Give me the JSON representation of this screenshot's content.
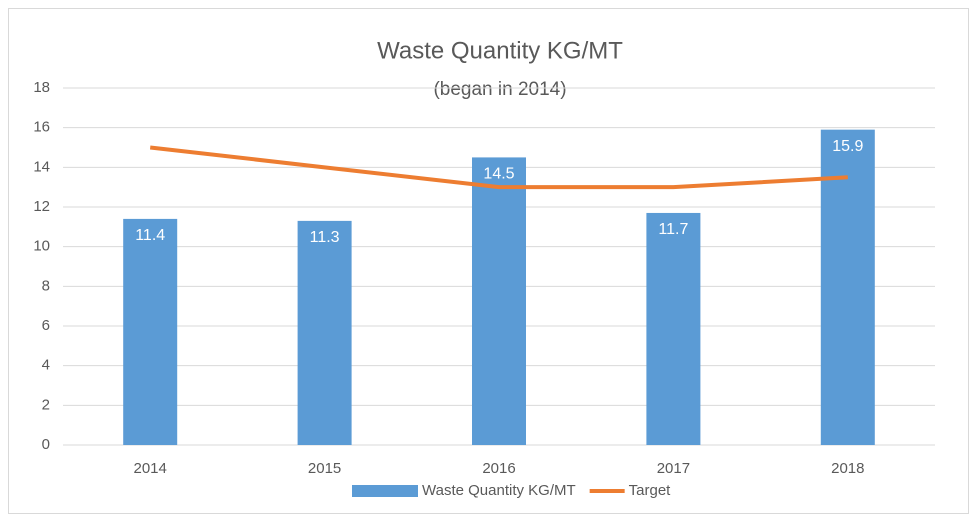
{
  "chart_data": {
    "type": "combo",
    "title": "Waste Quantity KG/MT",
    "subtitle": "(began in 2014)",
    "categories": [
      "2014",
      "2015",
      "2016",
      "2017",
      "2018"
    ],
    "series": [
      {
        "name": "Waste Quantity KG/MT",
        "type": "bar",
        "color": "#5b9bd5",
        "values": [
          11.4,
          11.3,
          14.5,
          11.7,
          15.9
        ]
      },
      {
        "name": "Target",
        "type": "line",
        "color": "#ed7d31",
        "values": [
          15,
          14,
          13,
          13,
          13.5
        ]
      }
    ],
    "ylim": [
      0,
      18
    ],
    "yticks": [
      0,
      2,
      4,
      6,
      8,
      10,
      12,
      14,
      16,
      18
    ],
    "grid": true,
    "legend": "bottom"
  }
}
